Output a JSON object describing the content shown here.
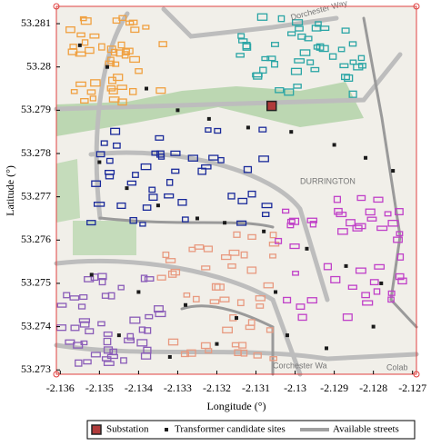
{
  "chart_data": {
    "type": "map",
    "x_label": "Longitude (°)",
    "y_label": "Latitude (°)",
    "xlim": [
      -2.1361,
      -2.1269
    ],
    "ylim": [
      53.2729,
      53.2814
    ],
    "xticks": [
      -2.136,
      -2.135,
      -2.134,
      -2.133,
      -2.132,
      -2.131,
      -2.13,
      -2.129,
      -2.128,
      -2.127
    ],
    "yticks": [
      53.273,
      53.274,
      53.275,
      53.276,
      53.277,
      53.278,
      53.279,
      53.28,
      53.281
    ],
    "map_labels": [
      "DURRINGTON",
      "Dorchester Way",
      "Corchester Wa",
      "Colab"
    ],
    "series": [
      {
        "name": "Substation",
        "color": "#b03a3a",
        "x": [
          -2.1306
        ],
        "y": [
          53.2791
        ]
      },
      {
        "name": "Transformer candidate sites",
        "color": "#1a1a1a",
        "x": [
          -2.1355,
          -2.1348,
          -2.1338,
          -2.133,
          -2.1322,
          -2.1312,
          -2.1301,
          -2.129,
          -2.1282,
          -2.1275,
          -2.135,
          -2.1343,
          -2.1335,
          -2.1325,
          -2.1318,
          -2.1308,
          -2.1297,
          -2.1287,
          -2.1278,
          -2.1352,
          -2.134,
          -2.1328,
          -2.1315,
          -2.1302,
          -2.1292,
          -2.128,
          -2.1345,
          -2.1332,
          -2.132,
          -2.1305
        ],
        "y": [
          53.2805,
          53.28,
          53.2795,
          53.279,
          53.2788,
          53.2786,
          53.2785,
          53.2782,
          53.2779,
          53.2776,
          53.2778,
          53.2772,
          53.2768,
          53.2765,
          53.2764,
          53.2762,
          53.2758,
          53.2754,
          53.275,
          53.2752,
          53.2748,
          53.2745,
          53.2742,
          53.2738,
          53.2735,
          53.274,
          53.2738,
          53.2733,
          53.2736,
          53.2748
        ]
      },
      {
        "name": "Available streets",
        "color": "#a0a0a0"
      }
    ]
  }
}
